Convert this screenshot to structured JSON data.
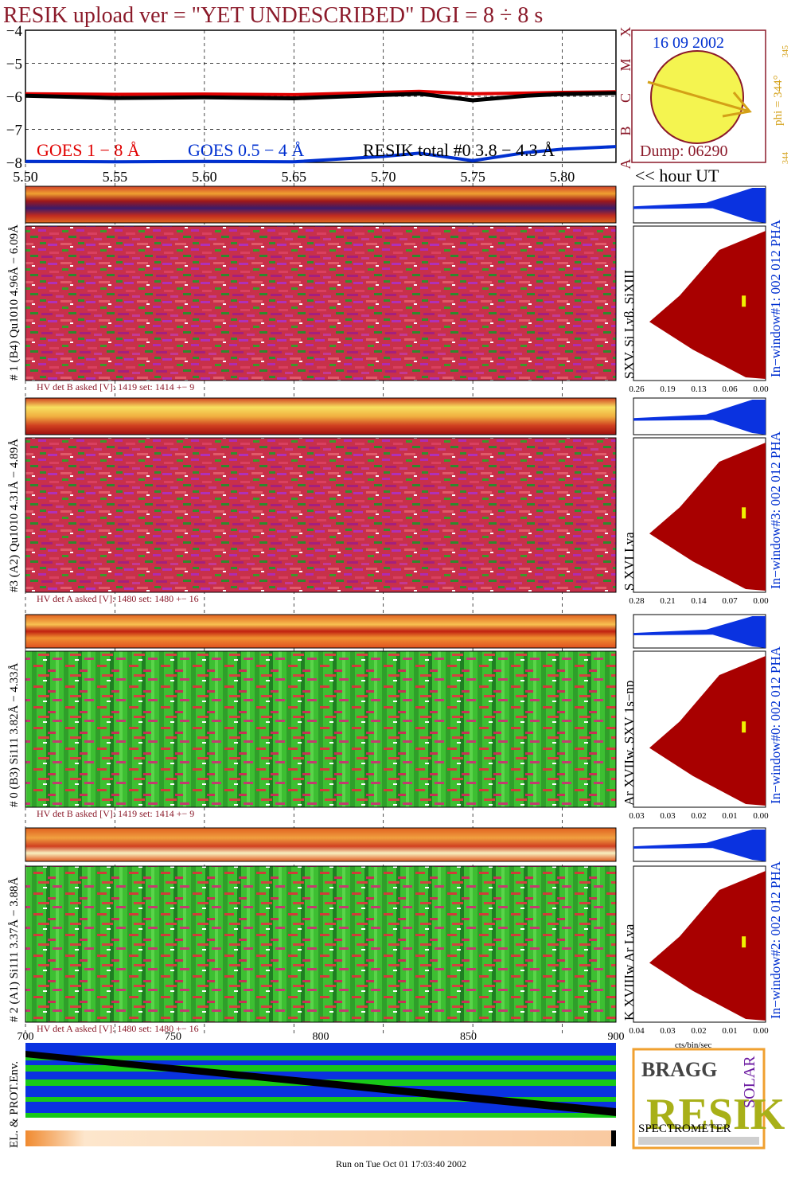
{
  "header": {
    "title": "RESIK upload ver = \"YET UNDESCRIBED\"  DGI =   8 ÷   8 s"
  },
  "goes_panel": {
    "legend": {
      "goes_long": "GOES 1 − 8 Å",
      "goes_short": "GOES 0.5 − 4 Å",
      "resik_total": "RESIK total #0  3.8 − 4.3 Å"
    },
    "class_letters": [
      "A",
      "B",
      "C",
      "M",
      "X"
    ]
  },
  "sun_panel": {
    "date": "16 09 2002",
    "dump": "Dump: 06290",
    "phi": "phi = 344°",
    "phi_sup": "345",
    "phi_low": "344",
    "hour_ut": "<< hour UT",
    "colors": {
      "disk": "#f4f450",
      "arrow": "#d4a017",
      "frame": "#8b1a2a"
    }
  },
  "time_axis": {
    "ticks": [
      "5.50",
      "5.55",
      "5.60",
      "5.65",
      "5.70",
      "5.75",
      "5.80"
    ]
  },
  "detector_panels": [
    {
      "ylabel": "# 1 (B4) Qu1010 4.96Å − 6.09Å",
      "side_label": "SXV, Si Lyβ, SiXIII",
      "window_label": "In−window#1:  002 012 PHA",
      "hv": "HV det B asked [V]:  1419 set:  1414 +−    9",
      "pha_ticks": [
        "0.26",
        "0.19",
        "0.13",
        "0.06",
        "0.00"
      ],
      "style": "magenta"
    },
    {
      "ylabel": "#3 (A2) Qu1010  4.31Å − 4.89Å",
      "side_label": "S XVI Lya",
      "window_label": "In−window#3:  002 012 PHA",
      "hv": "HV det A asked [V]:  1480 set:  1480 +−    16",
      "pha_ticks": [
        "0.28",
        "0.21",
        "0.14",
        "0.07",
        "0.00"
      ],
      "style": "magenta"
    },
    {
      "ylabel": "# 0 (B3) Si111  3.82Å − 4.33Å",
      "side_label": "Ar XVIIw, SXV 1s−np",
      "window_label": "In−window#0:  002 012 PHA",
      "hv": "HV det B asked [V]:  1419 set:  1414 +−    9",
      "pha_ticks": [
        "0.03",
        "0.03",
        "0.02",
        "0.01",
        "0.00"
      ],
      "style": "green"
    },
    {
      "ylabel": "# 2 (A1) Si111  3.37Å − 3.88Å",
      "side_label": "K XVIIIw  Ar Lya",
      "window_label": "In−window#2:  002 012 PHA",
      "hv": "HV det A asked [V]:  1480 set:  1480 +−    16",
      "pha_ticks": [
        "0.04",
        "0.03",
        "0.02",
        "0.01",
        "0.00"
      ],
      "style": "green"
    }
  ],
  "bottom_axis": {
    "ticks": [
      "700",
      "750",
      "800",
      "850",
      "900"
    ],
    "pha_xlabel": "cts/bin/sec"
  },
  "env_panel": {
    "ylabel": "EL. & PROT.Env."
  },
  "logo": {
    "bragg": "BRAGG",
    "resik": "RESIK",
    "solar": "SOLAR",
    "spectrometer": "SPECTROMETER"
  },
  "footer": {
    "run_on": "Run on Tue Oct 01 17:03:40 2002"
  },
  "chart_data": {
    "type": "line",
    "title": "RESIK upload ver = \"YET UNDESCRIBED\"  DGI =   8 ÷   8 s",
    "xlabel": "<< hour UT",
    "ylabel": "",
    "xlim": [
      5.5,
      5.83
    ],
    "ylim": [
      -8,
      -4
    ],
    "x": [
      5.5,
      5.55,
      5.6,
      5.65,
      5.7,
      5.72,
      5.75,
      5.78,
      5.8,
      5.83
    ],
    "series": [
      {
        "name": "GOES 1 − 8 Å",
        "color": "#e00000",
        "values": [
          -5.92,
          -5.94,
          -5.93,
          -5.95,
          -5.88,
          -5.85,
          -5.92,
          -5.9,
          -5.88,
          -5.86
        ]
      },
      {
        "name": "RESIK total #0  3.8 − 4.3 Å",
        "color": "#000000",
        "values": [
          -5.98,
          -6.05,
          -6.03,
          -6.06,
          -5.96,
          -5.92,
          -6.12,
          -5.98,
          -5.93,
          -5.9
        ]
      },
      {
        "name": "GOES 0.5 − 4 Å",
        "color": "#0030d0",
        "values": [
          -7.97,
          -7.98,
          -7.97,
          -7.98,
          -7.82,
          -7.72,
          -7.95,
          -7.7,
          -7.6,
          -7.52
        ]
      }
    ],
    "grid": true
  }
}
